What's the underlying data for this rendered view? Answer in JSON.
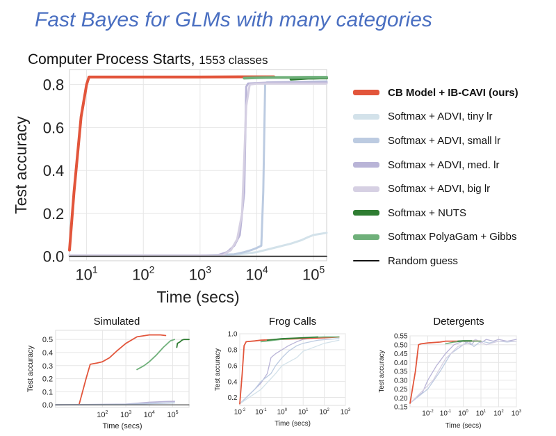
{
  "slide": {
    "title": "Fast Bayes for GLMs with many categories"
  },
  "main_chart_title": {
    "text": "Computer Process Starts,",
    "sub": "1553 classes"
  },
  "colors": {
    "cb": "#e2553b",
    "tiny": "#d3e2ea",
    "small": "#bccbe1",
    "med": "#b9b4d7",
    "big": "#d6d0e3",
    "nuts": "#2f7d32",
    "polya": "#6fb07a",
    "random": "#111111"
  },
  "legend": [
    {
      "label": "CB Model + IB-CAVI (ours)",
      "color": "#e2553b",
      "bold": true
    },
    {
      "label": "Softmax + ADVI, tiny lr",
      "color": "#d3e2ea"
    },
    {
      "label": "Softmax + ADVI, small lr",
      "color": "#bccbe1"
    },
    {
      "label": "Softmax + ADVI, med. lr",
      "color": "#b9b4d7"
    },
    {
      "label": "Softmax + ADVI, big lr",
      "color": "#d6d0e3"
    },
    {
      "label": "Softmax + NUTS",
      "color": "#2f7d32"
    },
    {
      "label": "Softmax PolyaGam + Gibbs",
      "color": "#6fb07a"
    },
    {
      "label": "Random guess",
      "color": "#111111",
      "thin": true
    }
  ],
  "chart_data": [
    {
      "type": "line",
      "title": "Computer Process Starts, 1553 classes",
      "xlabel": "Time (secs)",
      "ylabel": "Test accuracy",
      "xscale": "log",
      "xlim": [
        5,
        170000
      ],
      "ylim": [
        -0.02,
        0.87
      ],
      "xticks": [
        10,
        100,
        1000,
        10000,
        100000
      ],
      "xtick_labels": [
        "10^1",
        "10^2",
        "10^3",
        "10^4",
        "10^5"
      ],
      "yticks": [
        0.0,
        0.2,
        0.4,
        0.6,
        0.8
      ],
      "ytick_labels": [
        "0.0",
        "0.2",
        "0.4",
        "0.6",
        "0.8"
      ],
      "grid": true,
      "legend_position": "right",
      "series": [
        {
          "name": "CB Model + IB-CAVI (ours)",
          "color": "#e2553b",
          "width": 4,
          "x": [
            5,
            6,
            8,
            10,
            11,
            30,
            100,
            1000,
            5000,
            10000,
            20000
          ],
          "y": [
            0.03,
            0.3,
            0.65,
            0.8,
            0.835,
            0.835,
            0.835,
            0.835,
            0.836,
            0.836,
            0.836
          ]
        },
        {
          "name": "Softmax + ADVI, tiny lr",
          "color": "#d3e2ea",
          "width": 3,
          "x": [
            5,
            1000,
            5000,
            10000,
            20000,
            40000,
            60000,
            80000,
            100000,
            130000,
            170000
          ],
          "y": [
            0.005,
            0.005,
            0.01,
            0.02,
            0.04,
            0.06,
            0.075,
            0.09,
            0.1,
            0.105,
            0.11
          ]
        },
        {
          "name": "Softmax + ADVI, small lr",
          "color": "#bccbe1",
          "width": 3,
          "x": [
            5,
            1000,
            4000,
            6000,
            8000,
            10000,
            12000,
            13000,
            14000,
            15000,
            170000
          ],
          "y": [
            0.005,
            0.005,
            0.01,
            0.02,
            0.03,
            0.04,
            0.05,
            0.3,
            0.8,
            0.81,
            0.815
          ]
        },
        {
          "name": "Softmax + ADVI, med. lr",
          "color": "#b9b4d7",
          "width": 3,
          "x": [
            5,
            2000,
            3000,
            4000,
            5000,
            5500,
            6000,
            6500,
            7000,
            20000,
            170000
          ],
          "y": [
            0.005,
            0.005,
            0.02,
            0.05,
            0.1,
            0.2,
            0.3,
            0.79,
            0.805,
            0.81,
            0.81
          ]
        },
        {
          "name": "Softmax + ADVI, big lr",
          "color": "#d6d0e3",
          "width": 3,
          "x": [
            5,
            2500,
            3500,
            4500,
            5500,
            6500,
            7500,
            10000,
            170000
          ],
          "y": [
            0.005,
            0.005,
            0.03,
            0.08,
            0.2,
            0.7,
            0.8,
            0.805,
            0.805
          ]
        },
        {
          "name": "Softmax + NUTS",
          "color": "#2f7d32",
          "width": 4,
          "x": [
            40000,
            60000,
            80000,
            100000,
            130000,
            170000
          ],
          "y": [
            0.825,
            0.828,
            0.83,
            0.83,
            0.831,
            0.831
          ]
        },
        {
          "name": "Softmax PolyaGam + Gibbs",
          "color": "#6fb07a",
          "width": 4,
          "x": [
            6000,
            10000,
            20000,
            40000,
            80000,
            170000
          ],
          "y": [
            0.83,
            0.832,
            0.833,
            0.833,
            0.834,
            0.834
          ]
        },
        {
          "name": "Random guess",
          "color": "#111111",
          "width": 1.5,
          "x": [
            5,
            170000
          ],
          "y": [
            0.001,
            0.001
          ]
        }
      ]
    },
    {
      "type": "line",
      "title": "Simulated",
      "xlabel": "Time (secs)",
      "ylabel": "Test accuracy",
      "xscale": "log",
      "xlim": [
        1,
        500000
      ],
      "ylim": [
        -0.02,
        0.57
      ],
      "xticks": [
        100,
        1000,
        10000,
        100000
      ],
      "xtick_labels": [
        "10^2",
        "10^3",
        "10^4",
        "10^5"
      ],
      "yticks": [
        0.0,
        0.1,
        0.2,
        0.3,
        0.4,
        0.5
      ],
      "ytick_labels": [
        "0.0",
        "0.1",
        "0.2",
        "0.3",
        "0.4",
        "0.5"
      ],
      "grid": true,
      "series": [
        {
          "color": "#e2553b",
          "width": 1.8,
          "x": [
            10,
            20,
            30,
            60,
            100,
            200,
            400,
            1000,
            3000,
            10000,
            30000,
            50000
          ],
          "y": [
            0.0,
            0.2,
            0.31,
            0.32,
            0.33,
            0.36,
            0.41,
            0.47,
            0.52,
            0.535,
            0.535,
            0.53
          ]
        },
        {
          "color": "#6fb07a",
          "width": 1.8,
          "x": [
            3000,
            6000,
            10000,
            20000,
            40000,
            80000,
            120000
          ],
          "y": [
            0.27,
            0.3,
            0.33,
            0.38,
            0.44,
            0.49,
            0.5
          ]
        },
        {
          "color": "#2f7d32",
          "width": 1.8,
          "x": [
            150000,
            160000,
            200000,
            250000,
            300000,
            500000
          ],
          "y": [
            0.44,
            0.47,
            0.48,
            0.495,
            0.5,
            0.5
          ]
        },
        {
          "color": "#b9b4d7",
          "width": 1.8,
          "x": [
            1,
            1000,
            3000,
            10000,
            50000,
            120000
          ],
          "y": [
            0.0,
            0.005,
            0.012,
            0.02,
            0.025,
            0.027
          ]
        },
        {
          "color": "#bccbe1",
          "width": 1.8,
          "x": [
            1,
            1000,
            10000,
            120000
          ],
          "y": [
            0.0,
            0.003,
            0.01,
            0.015
          ]
        },
        {
          "color": "#333333",
          "width": 1.2,
          "x": [
            1,
            500000
          ],
          "y": [
            0.0,
            0.0
          ]
        }
      ]
    },
    {
      "type": "line",
      "title": "Frog Calls",
      "xlabel": "Time (secs)",
      "ylabel": "Test accuracy",
      "xscale": "log",
      "xlim": [
        0.01,
        1000
      ],
      "ylim": [
        0.1,
        1.0
      ],
      "xticks": [
        0.01,
        0.1,
        1,
        10,
        100,
        1000
      ],
      "xtick_labels": [
        "10^-2",
        "10^-1",
        "10^0",
        "10^1",
        "10^2",
        "10^3"
      ],
      "yticks": [
        0.2,
        0.4,
        0.6,
        0.8,
        1.0
      ],
      "ytick_labels": [
        "0.2",
        "0.4",
        "0.6",
        "0.8",
        "1.0"
      ],
      "grid": true,
      "series": [
        {
          "color": "#b9b4d7",
          "width": 1.3,
          "x": [
            0.01,
            0.05,
            0.1,
            0.2,
            0.3,
            0.5,
            1,
            2,
            5,
            10,
            50,
            500
          ],
          "y": [
            0.12,
            0.3,
            0.38,
            0.5,
            0.7,
            0.75,
            0.8,
            0.85,
            0.9,
            0.93,
            0.95,
            0.96
          ]
        },
        {
          "color": "#bccbe1",
          "width": 1.3,
          "x": [
            0.01,
            0.05,
            0.1,
            0.3,
            0.5,
            1,
            2,
            5,
            10,
            50,
            500
          ],
          "y": [
            0.12,
            0.3,
            0.4,
            0.5,
            0.6,
            0.7,
            0.78,
            0.85,
            0.88,
            0.92,
            0.94
          ]
        },
        {
          "color": "#d3e2ea",
          "width": 1.3,
          "x": [
            0.01,
            0.1,
            0.5,
            1,
            5,
            10,
            50,
            100,
            500
          ],
          "y": [
            0.12,
            0.3,
            0.5,
            0.6,
            0.7,
            0.78,
            0.85,
            0.88,
            0.92
          ]
        },
        {
          "color": "#e2553b",
          "width": 1.8,
          "x": [
            0.01,
            0.013,
            0.016,
            0.02,
            0.05,
            0.1,
            1,
            10,
            100,
            500
          ],
          "y": [
            0.12,
            0.5,
            0.85,
            0.9,
            0.91,
            0.92,
            0.93,
            0.94,
            0.95,
            0.96
          ]
        },
        {
          "color": "#6fb07a",
          "width": 1.6,
          "x": [
            0.1,
            1,
            10,
            100,
            500
          ],
          "y": [
            0.9,
            0.93,
            0.95,
            0.96,
            0.96
          ]
        },
        {
          "color": "#2f7d32",
          "width": 1.6,
          "x": [
            0.2,
            1,
            10,
            50
          ],
          "y": [
            0.92,
            0.94,
            0.95,
            0.96
          ]
        }
      ]
    },
    {
      "type": "line",
      "title": "Detergents",
      "xlabel": "Time (secs)",
      "ylabel": "Test accuracy",
      "xscale": "log",
      "xlim": [
        0.001,
        1000
      ],
      "ylim": [
        0.15,
        0.55
      ],
      "xticks": [
        0.01,
        0.1,
        1,
        10,
        100,
        1000
      ],
      "xtick_labels": [
        "10^-2",
        "10^-1",
        "10^0",
        "10^1",
        "10^2",
        "10^3"
      ],
      "yticks": [
        0.15,
        0.2,
        0.25,
        0.3,
        0.35,
        0.4,
        0.45,
        0.5,
        0.55
      ],
      "ytick_labels": [
        "0.15",
        "0.20",
        "0.25",
        "0.30",
        "0.35",
        "0.40",
        "0.45",
        "0.50",
        "0.55"
      ],
      "grid": true,
      "series": [
        {
          "color": "#b9b4d7",
          "width": 1.3,
          "x": [
            0.001,
            0.005,
            0.01,
            0.03,
            0.1,
            0.3,
            1,
            3,
            5,
            10,
            20,
            50,
            100,
            300,
            1000
          ],
          "y": [
            0.17,
            0.23,
            0.3,
            0.38,
            0.45,
            0.5,
            0.52,
            0.5,
            0.53,
            0.51,
            0.53,
            0.52,
            0.53,
            0.52,
            0.53
          ]
        },
        {
          "color": "#bccbe1",
          "width": 1.3,
          "x": [
            0.001,
            0.01,
            0.05,
            0.2,
            1,
            2,
            4,
            10,
            30,
            100,
            300,
            1000
          ],
          "y": [
            0.17,
            0.25,
            0.35,
            0.45,
            0.5,
            0.52,
            0.49,
            0.52,
            0.51,
            0.52,
            0.515,
            0.52
          ]
        },
        {
          "color": "#d6d0e3",
          "width": 1.3,
          "x": [
            0.001,
            0.02,
            0.1,
            0.5,
            2,
            5,
            20,
            100,
            1000
          ],
          "y": [
            0.17,
            0.3,
            0.42,
            0.49,
            0.51,
            0.53,
            0.5,
            0.52,
            0.52
          ]
        },
        {
          "color": "#e2553b",
          "width": 1.8,
          "x": [
            0.001,
            0.002,
            0.003,
            0.004,
            0.01,
            0.05,
            0.1,
            1,
            10
          ],
          "y": [
            0.17,
            0.35,
            0.5,
            0.505,
            0.51,
            0.515,
            0.52,
            0.52,
            0.52
          ]
        },
        {
          "color": "#6fb07a",
          "width": 1.6,
          "x": [
            0.1,
            0.3,
            1,
            3,
            10
          ],
          "y": [
            0.505,
            0.515,
            0.52,
            0.52,
            0.52
          ]
        },
        {
          "color": "#2f7d32",
          "width": 1.6,
          "x": [
            0.5,
            1,
            3
          ],
          "y": [
            0.52,
            0.522,
            0.522
          ]
        }
      ]
    }
  ]
}
